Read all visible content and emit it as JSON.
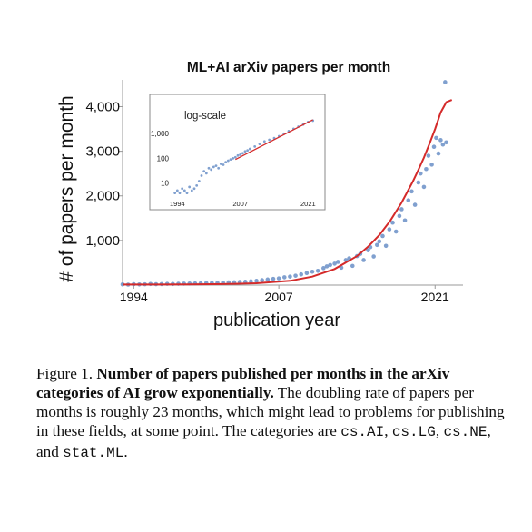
{
  "figure": {
    "caption": {
      "label": "Figure 1.",
      "title": "Number of papers published per months in the arXiv categories of AI grow exponentially.",
      "body": "The doubling rate of papers per months is roughly 23 months, which might lead to problems for publishing in these fields, at some point. The categories are",
      "categories": [
        "cs.AI",
        "cs.LG",
        "cs.NE",
        "stat.ML"
      ],
      "sep_comma": ",",
      "sep_and": ", and",
      "end": "."
    }
  },
  "chart_data": [
    {
      "type": "scatter",
      "title": "ML+AI arXiv papers per month",
      "xlabel": "publication year",
      "ylabel": "# of papers per month",
      "xlim": [
        1993,
        2023.5
      ],
      "ylim": [
        0,
        4600
      ],
      "x_ticks": [
        1994,
        2007,
        2021
      ],
      "x_tick_labels": [
        "1994",
        "2007",
        "2021"
      ],
      "y_ticks": [
        1000,
        2000,
        3000,
        4000
      ],
      "y_tick_labels": [
        "1,000",
        "2,000",
        "3,000",
        "4,000"
      ],
      "grid": false,
      "series": [
        {
          "kind": "points",
          "color": "#6a8fc7",
          "x": [
            1993.0,
            1993.5,
            1994.0,
            1994.5,
            1995.0,
            1995.5,
            1996.0,
            1996.5,
            1997.0,
            1997.5,
            1998.0,
            1998.5,
            1999.0,
            1999.5,
            2000.0,
            2000.5,
            2001.0,
            2001.5,
            2002.0,
            2002.5,
            2003.0,
            2003.5,
            2004.0,
            2004.5,
            2005.0,
            2005.5,
            2006.0,
            2006.5,
            2007.0,
            2007.5,
            2008.0,
            2008.5,
            2009.0,
            2009.5,
            2010.0,
            2010.5,
            2011.0,
            2011.3,
            2011.6,
            2012.0,
            2012.3,
            2012.6,
            2013.0,
            2013.3,
            2013.6,
            2014.0,
            2014.3,
            2014.6,
            2015.0,
            2015.2,
            2015.5,
            2015.8,
            2016.0,
            2016.3,
            2016.6,
            2016.9,
            2017.2,
            2017.5,
            2017.8,
            2018.0,
            2018.3,
            2018.6,
            2018.9,
            2019.2,
            2019.5,
            2019.7,
            2020.0,
            2020.2,
            2020.4,
            2020.7,
            2020.9,
            2021.1,
            2021.3,
            2021.5,
            2021.7,
            2021.9,
            2022.0
          ],
          "y": [
            15,
            10,
            20,
            15,
            18,
            25,
            20,
            22,
            28,
            25,
            30,
            32,
            35,
            38,
            40,
            45,
            48,
            50,
            55,
            60,
            62,
            70,
            75,
            85,
            95,
            110,
            125,
            140,
            150,
            175,
            190,
            210,
            240,
            270,
            300,
            320,
            380,
            420,
            450,
            480,
            520,
            390,
            560,
            600,
            430,
            650,
            700,
            560,
            780,
            850,
            640,
            900,
            980,
            1100,
            880,
            1250,
            1400,
            1200,
            1550,
            1700,
            1450,
            1900,
            2100,
            1800,
            2300,
            2500,
            2200,
            2600,
            2900,
            2700,
            3100,
            3300,
            2950,
            3250,
            3150,
            4550,
            3200
          ]
        },
        {
          "kind": "fit",
          "color": "#d42a2a",
          "doubling_months": 23,
          "x": [
            1993,
            1996,
            1999,
            2002,
            2005,
            2008,
            2010,
            2012,
            2014,
            2015,
            2016,
            2017,
            2018,
            2019,
            2019.5,
            2020,
            2020.5,
            2021,
            2021.5,
            2022,
            2022.5
          ],
          "y": [
            12,
            13,
            16,
            22,
            40,
            95,
            190,
            360,
            650,
            860,
            1120,
            1450,
            1850,
            2320,
            2580,
            2860,
            3170,
            3500,
            3870,
            4100,
            4150
          ]
        }
      ]
    },
    {
      "type": "scatter",
      "title": "log-scale",
      "xlim": [
        1993,
        2023
      ],
      "y_scale": "log",
      "ylim": [
        3,
        5000
      ],
      "x_ticks": [
        1994,
        2007,
        2021
      ],
      "x_tick_labels": [
        "1994",
        "2007",
        "2021"
      ],
      "y_ticks": [
        10,
        100,
        1000
      ],
      "y_tick_labels": [
        "10",
        "100",
        "1,000"
      ],
      "series": [
        {
          "kind": "points",
          "color": "#6a8fc7",
          "x": [
            1993.5,
            1994.0,
            1994.5,
            1995.0,
            1995.5,
            1996.0,
            1996.5,
            1997.0,
            1997.5,
            1998.0,
            1998.5,
            1999.0,
            1999.5,
            2000.0,
            2000.5,
            2001.0,
            2001.5,
            2002.0,
            2002.5,
            2003.0,
            2003.5,
            2004.0,
            2004.5,
            2005.0,
            2005.5,
            2006.0,
            2006.5,
            2007.0,
            2007.5,
            2008.0,
            2008.5,
            2009.0,
            2010.0,
            2011.0,
            2012.0,
            2013.0,
            2014.0,
            2015.0,
            2016.0,
            2017.0,
            2018.0,
            2019.0,
            2020.0,
            2021.0,
            2022.0
          ],
          "y": [
            4,
            5,
            4,
            6,
            5,
            4,
            7,
            5,
            6,
            8,
            12,
            20,
            30,
            25,
            40,
            35,
            45,
            50,
            40,
            60,
            55,
            70,
            80,
            90,
            100,
            110,
            130,
            140,
            160,
            190,
            210,
            240,
            300,
            380,
            480,
            560,
            650,
            780,
            980,
            1250,
            1550,
            1900,
            2300,
            2900,
            3300
          ]
        },
        {
          "kind": "fit",
          "color": "#d42a2a",
          "x": [
            2006,
            2022
          ],
          "y": [
            90,
            3600
          ]
        }
      ]
    }
  ]
}
